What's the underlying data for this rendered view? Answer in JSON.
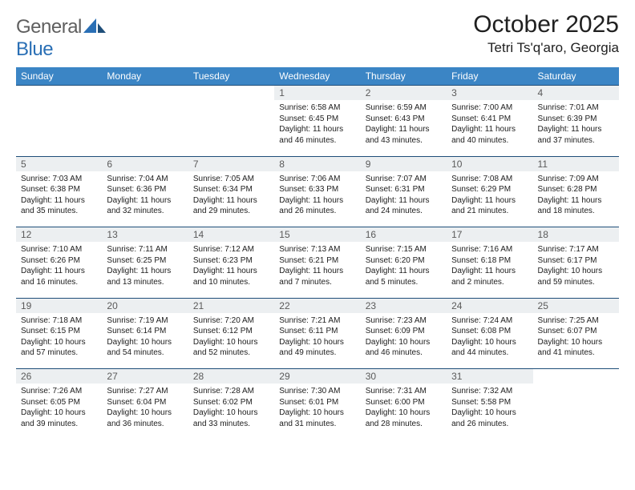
{
  "logo": {
    "word1": "General",
    "word2": "Blue"
  },
  "title": "October 2025",
  "location": "Tetri Ts'q'aro, Georgia",
  "weekday_header_bg": "#3b85c5",
  "weekday_header_color": "#ffffff",
  "daynum_bg": "#eceff1",
  "border_color": "#1f4e79",
  "weekdays": [
    "Sunday",
    "Monday",
    "Tuesday",
    "Wednesday",
    "Thursday",
    "Friday",
    "Saturday"
  ],
  "weeks": [
    [
      null,
      null,
      null,
      {
        "day": "1",
        "sunrise": "6:58 AM",
        "sunset": "6:45 PM",
        "daylight": "11 hours and 46 minutes."
      },
      {
        "day": "2",
        "sunrise": "6:59 AM",
        "sunset": "6:43 PM",
        "daylight": "11 hours and 43 minutes."
      },
      {
        "day": "3",
        "sunrise": "7:00 AM",
        "sunset": "6:41 PM",
        "daylight": "11 hours and 40 minutes."
      },
      {
        "day": "4",
        "sunrise": "7:01 AM",
        "sunset": "6:39 PM",
        "daylight": "11 hours and 37 minutes."
      }
    ],
    [
      {
        "day": "5",
        "sunrise": "7:03 AM",
        "sunset": "6:38 PM",
        "daylight": "11 hours and 35 minutes."
      },
      {
        "day": "6",
        "sunrise": "7:04 AM",
        "sunset": "6:36 PM",
        "daylight": "11 hours and 32 minutes."
      },
      {
        "day": "7",
        "sunrise": "7:05 AM",
        "sunset": "6:34 PM",
        "daylight": "11 hours and 29 minutes."
      },
      {
        "day": "8",
        "sunrise": "7:06 AM",
        "sunset": "6:33 PM",
        "daylight": "11 hours and 26 minutes."
      },
      {
        "day": "9",
        "sunrise": "7:07 AM",
        "sunset": "6:31 PM",
        "daylight": "11 hours and 24 minutes."
      },
      {
        "day": "10",
        "sunrise": "7:08 AM",
        "sunset": "6:29 PM",
        "daylight": "11 hours and 21 minutes."
      },
      {
        "day": "11",
        "sunrise": "7:09 AM",
        "sunset": "6:28 PM",
        "daylight": "11 hours and 18 minutes."
      }
    ],
    [
      {
        "day": "12",
        "sunrise": "7:10 AM",
        "sunset": "6:26 PM",
        "daylight": "11 hours and 16 minutes."
      },
      {
        "day": "13",
        "sunrise": "7:11 AM",
        "sunset": "6:25 PM",
        "daylight": "11 hours and 13 minutes."
      },
      {
        "day": "14",
        "sunrise": "7:12 AM",
        "sunset": "6:23 PM",
        "daylight": "11 hours and 10 minutes."
      },
      {
        "day": "15",
        "sunrise": "7:13 AM",
        "sunset": "6:21 PM",
        "daylight": "11 hours and 7 minutes."
      },
      {
        "day": "16",
        "sunrise": "7:15 AM",
        "sunset": "6:20 PM",
        "daylight": "11 hours and 5 minutes."
      },
      {
        "day": "17",
        "sunrise": "7:16 AM",
        "sunset": "6:18 PM",
        "daylight": "11 hours and 2 minutes."
      },
      {
        "day": "18",
        "sunrise": "7:17 AM",
        "sunset": "6:17 PM",
        "daylight": "10 hours and 59 minutes."
      }
    ],
    [
      {
        "day": "19",
        "sunrise": "7:18 AM",
        "sunset": "6:15 PM",
        "daylight": "10 hours and 57 minutes."
      },
      {
        "day": "20",
        "sunrise": "7:19 AM",
        "sunset": "6:14 PM",
        "daylight": "10 hours and 54 minutes."
      },
      {
        "day": "21",
        "sunrise": "7:20 AM",
        "sunset": "6:12 PM",
        "daylight": "10 hours and 52 minutes."
      },
      {
        "day": "22",
        "sunrise": "7:21 AM",
        "sunset": "6:11 PM",
        "daylight": "10 hours and 49 minutes."
      },
      {
        "day": "23",
        "sunrise": "7:23 AM",
        "sunset": "6:09 PM",
        "daylight": "10 hours and 46 minutes."
      },
      {
        "day": "24",
        "sunrise": "7:24 AM",
        "sunset": "6:08 PM",
        "daylight": "10 hours and 44 minutes."
      },
      {
        "day": "25",
        "sunrise": "7:25 AM",
        "sunset": "6:07 PM",
        "daylight": "10 hours and 41 minutes."
      }
    ],
    [
      {
        "day": "26",
        "sunrise": "7:26 AM",
        "sunset": "6:05 PM",
        "daylight": "10 hours and 39 minutes."
      },
      {
        "day": "27",
        "sunrise": "7:27 AM",
        "sunset": "6:04 PM",
        "daylight": "10 hours and 36 minutes."
      },
      {
        "day": "28",
        "sunrise": "7:28 AM",
        "sunset": "6:02 PM",
        "daylight": "10 hours and 33 minutes."
      },
      {
        "day": "29",
        "sunrise": "7:30 AM",
        "sunset": "6:01 PM",
        "daylight": "10 hours and 31 minutes."
      },
      {
        "day": "30",
        "sunrise": "7:31 AM",
        "sunset": "6:00 PM",
        "daylight": "10 hours and 28 minutes."
      },
      {
        "day": "31",
        "sunrise": "7:32 AM",
        "sunset": "5:58 PM",
        "daylight": "10 hours and 26 minutes."
      },
      null
    ]
  ],
  "labels": {
    "sunrise": "Sunrise:",
    "sunset": "Sunset:",
    "daylight": "Daylight:"
  }
}
